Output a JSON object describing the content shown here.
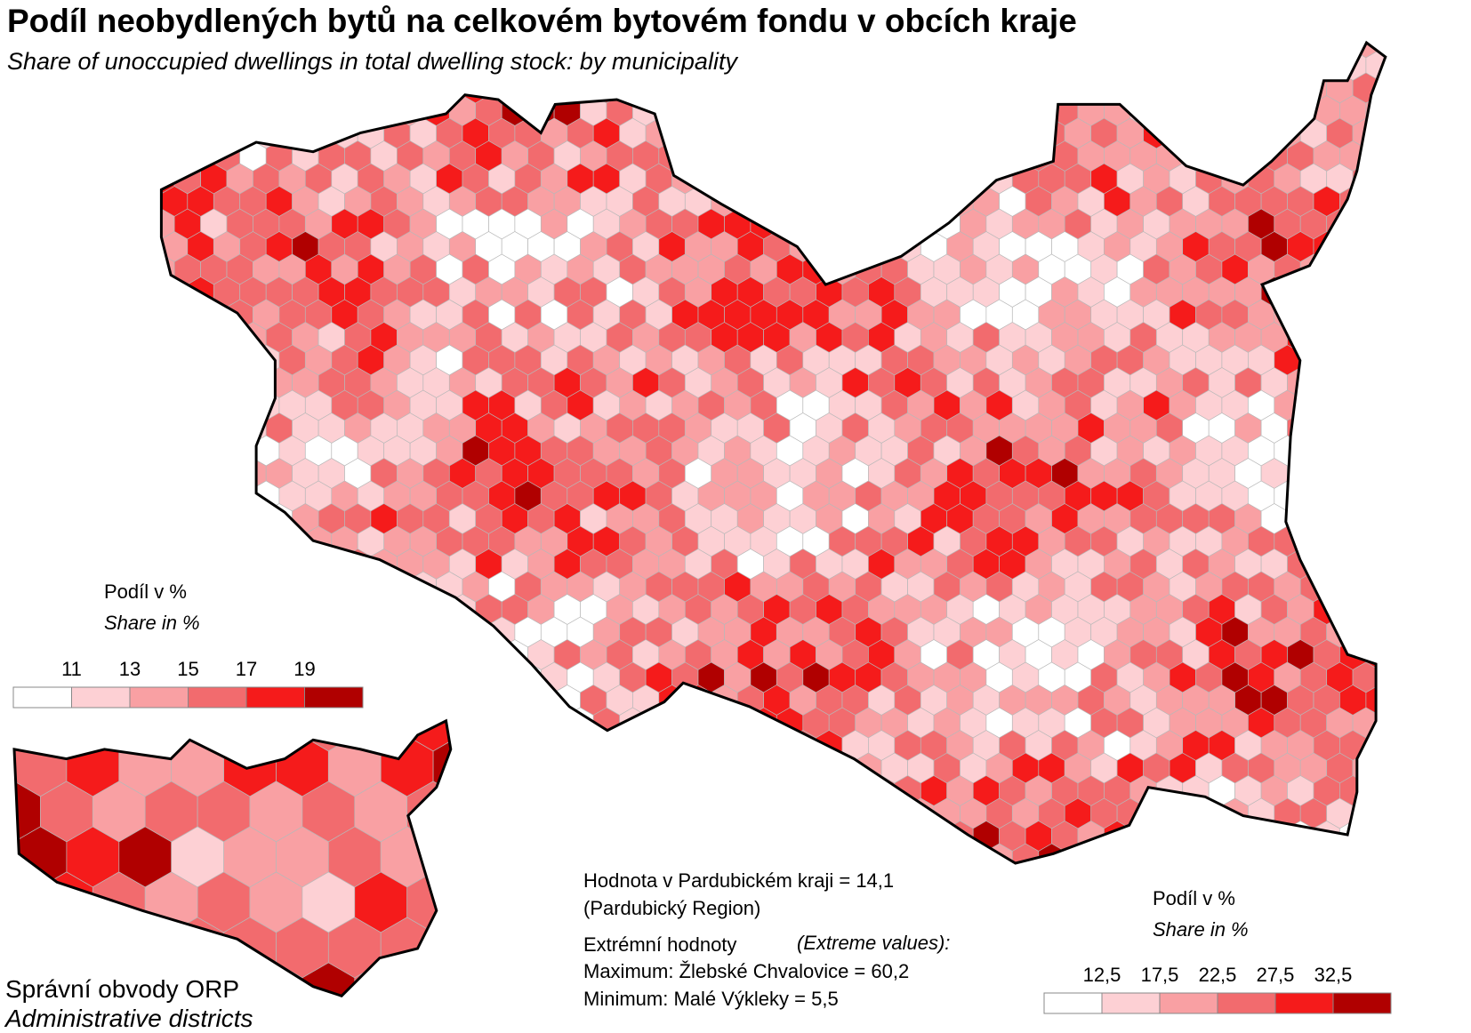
{
  "title": "Podíl neobydlených bytů na celkovém bytovém fondu v obcích kraje",
  "subtitle": "Share of unoccupied dwellings in total dwelling stock: by municipality",
  "main_legend": {
    "title": "Podíl v %",
    "subtitle": "Share in %",
    "ticks": [
      11,
      13,
      15,
      17,
      19
    ],
    "colors": [
      "#ffffff",
      "#fdd0d4",
      "#f9a0a3",
      "#f26b6e",
      "#f51b1b",
      "#b00000"
    ]
  },
  "inset_legend": {
    "title": "Podíl v %",
    "subtitle": "Share in %",
    "ticks": [
      {
        "value": 12.5,
        "label": "12,5"
      },
      {
        "value": 17.5,
        "label": "17,5"
      },
      {
        "value": 22.5,
        "label": "22,5"
      },
      {
        "value": 27.5,
        "label": "27,5"
      },
      {
        "value": 32.5,
        "label": "32,5"
      }
    ],
    "colors": [
      "#ffffff",
      "#fdd0d4",
      "#f9a0a3",
      "#f26b6e",
      "#f51b1b",
      "#b00000"
    ]
  },
  "inset_caption": {
    "title": "Správní obvody  ORP",
    "subtitle": "Administrative districts"
  },
  "notes": {
    "region_value": "Hodnota v Pardubickém kraji = 14,1",
    "region_name": "(Pardubický Region)",
    "extremes_title": "Extrémní hodnoty",
    "extremes_subtitle": "(Extreme values):",
    "maximum": "Maximum: Žlebské Chvalovice = 60,2",
    "minimum": "Minimum: Malé Výkleky = 5,5"
  }
}
